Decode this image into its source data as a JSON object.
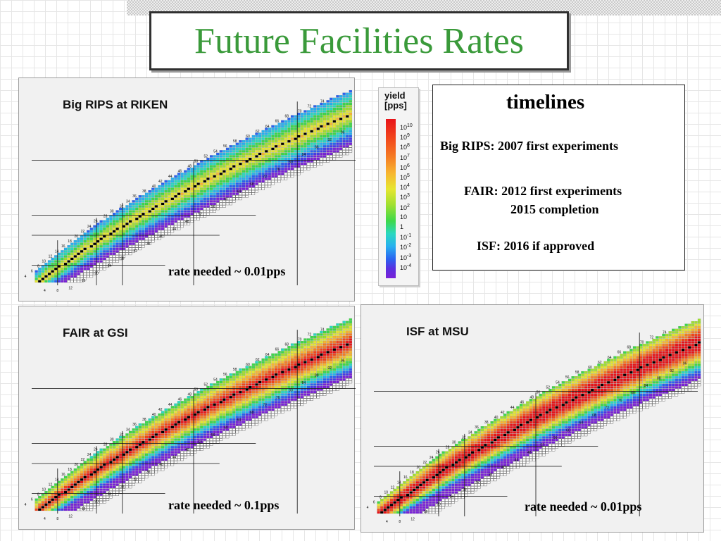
{
  "slide": {
    "title": "Future Facilities Rates"
  },
  "panels": [
    {
      "id": "bigrips",
      "title": "Big RIPS at RIKEN",
      "rate": "rate needed ~ 0.01pps",
      "intensity": 0.2
    },
    {
      "id": "fair",
      "title": "FAIR at GSI",
      "rate": "rate needed ~ 0.1pps",
      "intensity": 0.65
    },
    {
      "id": "isf",
      "title": "ISF at MSU",
      "rate": "rate needed ~ 0.01pps",
      "intensity": 0.85
    }
  ],
  "chart_labels": {
    "left_z_labels": [
      "4",
      "6",
      "8",
      "10",
      "12",
      "14",
      "16",
      "18",
      "20",
      "22",
      "24",
      "26",
      "28",
      "30",
      "32",
      "34",
      "36",
      "38",
      "40",
      "42",
      "44",
      "46",
      "48",
      "50",
      "52",
      "54",
      "56",
      "58",
      "60",
      "62",
      "64",
      "66",
      "68",
      "70",
      "72",
      "74"
    ],
    "bottom_n_labels": [
      "4",
      "8",
      "12",
      "16",
      "20",
      "24",
      "28",
      "32",
      "36",
      "40",
      "44",
      "48",
      "52",
      "56",
      "60",
      "64",
      "68",
      "72",
      "76",
      "80",
      "84",
      "88",
      "92",
      "96"
    ]
  },
  "legend": {
    "title_line1": "yield",
    "title_line2": "[pps]",
    "ticks": [
      {
        "base": "10",
        "exp": "10"
      },
      {
        "base": "10",
        "exp": "9"
      },
      {
        "base": "10",
        "exp": "8"
      },
      {
        "base": "10",
        "exp": "7"
      },
      {
        "base": "10",
        "exp": "6"
      },
      {
        "base": "10",
        "exp": "5"
      },
      {
        "base": "10",
        "exp": "4"
      },
      {
        "base": "10",
        "exp": "3"
      },
      {
        "base": "10",
        "exp": "2"
      },
      {
        "base": "10",
        "exp": ""
      },
      {
        "base": "1",
        "exp": ""
      },
      {
        "base": "10",
        "exp": "-1"
      },
      {
        "base": "10",
        "exp": "-2"
      },
      {
        "base": "10",
        "exp": "-3"
      },
      {
        "base": "10",
        "exp": "-4"
      }
    ]
  },
  "timelines": {
    "heading": "timelines",
    "lines": [
      "Big RIPS: 2007   first experiments",
      "FAIR: 2012    first experiments",
      "2015    completion",
      "ISF: 2016    if approved"
    ]
  }
}
